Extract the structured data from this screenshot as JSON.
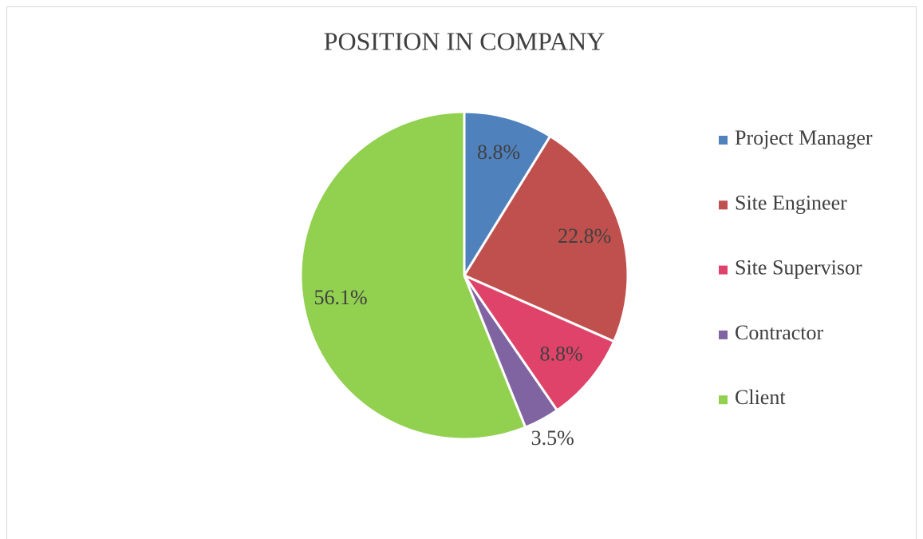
{
  "chart_data": {
    "type": "pie",
    "title": "POSITION IN COMPANY",
    "categories": [
      "Project Manager",
      "Site Engineer",
      "Site Supervisor",
      "Contractor",
      "Client"
    ],
    "values": [
      8.8,
      22.8,
      8.8,
      3.5,
      56.1
    ],
    "value_labels": [
      "8.8%",
      "22.8%",
      "8.8%",
      "3.5%",
      "56.1%"
    ],
    "colors": [
      "#4f81bd",
      "#c0504d",
      "#e0436a",
      "#8064a2",
      "#92d050"
    ],
    "legend": "right"
  }
}
